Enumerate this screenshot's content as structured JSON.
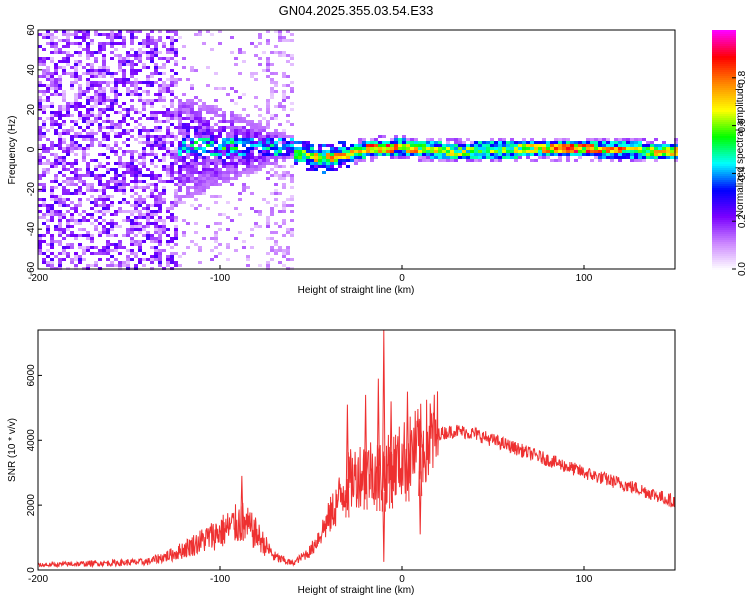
{
  "title": "GN04.2025.355.03.54.E33",
  "chart_data": [
    {
      "type": "heatmap",
      "name": "spectrogram",
      "xlabel": "Height of straight line (km)",
      "ylabel": "Frequency (Hz)",
      "xlim": [
        -200,
        150
      ],
      "ylim": [
        -60,
        60
      ],
      "x_ticks": [
        -200,
        -100,
        0,
        100
      ],
      "y_ticks": [
        -60,
        -40,
        -20,
        0,
        20,
        40,
        60
      ],
      "colorbar": {
        "label": "Normalized spectral amplitude",
        "range": [
          0,
          1
        ],
        "ticks": [
          0.0,
          0.2,
          0.4,
          0.6,
          0.8
        ],
        "colors": [
          "#ffffff",
          "#cc88ff",
          "#7a00ff",
          "#0000ff",
          "#00ffff",
          "#00ff00",
          "#ffff00",
          "#ff8800",
          "#ff0000",
          "#ff00ff"
        ]
      },
      "ridge_points": [
        {
          "x": -55,
          "freq": -2,
          "amp": 0.7
        },
        {
          "x": -43,
          "freq": -4,
          "amp": 0.85
        },
        {
          "x": -20,
          "freq": 1,
          "amp": 0.9
        },
        {
          "x": -2,
          "freq": 2,
          "amp": 0.95
        },
        {
          "x": 25,
          "freq": 0,
          "amp": 0.7
        },
        {
          "x": 75,
          "freq": 1,
          "amp": 0.8
        },
        {
          "x": 92,
          "freq": 1,
          "amp": 0.95
        },
        {
          "x": 145,
          "freq": 0,
          "amp": 0.8
        }
      ]
    },
    {
      "type": "line",
      "name": "snr",
      "xlabel": "Height of straight line (km)",
      "ylabel": "SNR (10 * v/v)",
      "xlim": [
        -200,
        150
      ],
      "ylim": [
        0,
        7400
      ],
      "x_ticks": [
        -200,
        -100,
        0,
        100
      ],
      "y_ticks": [
        0,
        2000,
        4000,
        6000
      ],
      "color": "#ee3030",
      "envelope": {
        "x": [
          -200,
          -140,
          -125,
          -110,
          -95,
          -88,
          -80,
          -70,
          -60,
          -50,
          -40,
          -30,
          -20,
          -10,
          0,
          10,
          20,
          30,
          40,
          50,
          70,
          100,
          130,
          150
        ],
        "y": [
          150,
          250,
          500,
          900,
          1300,
          1500,
          1100,
          400,
          200,
          600,
          1600,
          2700,
          3100,
          3000,
          3400,
          3800,
          4200,
          4300,
          4200,
          4000,
          3600,
          3000,
          2500,
          2100
        ]
      },
      "spikes": [
        {
          "x": -88,
          "y": 2900
        },
        {
          "x": -30,
          "y": 5100
        },
        {
          "x": -20,
          "y": 5400
        },
        {
          "x": -13,
          "y": 5900
        },
        {
          "x": -10,
          "y": 7400
        },
        {
          "x": -6,
          "y": 5200
        },
        {
          "x": 3,
          "y": 5500
        },
        {
          "x": 10,
          "y": 4600
        }
      ],
      "dips": [
        {
          "x": -10,
          "y": 250
        },
        {
          "x": 10,
          "y": 1100
        }
      ]
    }
  ]
}
